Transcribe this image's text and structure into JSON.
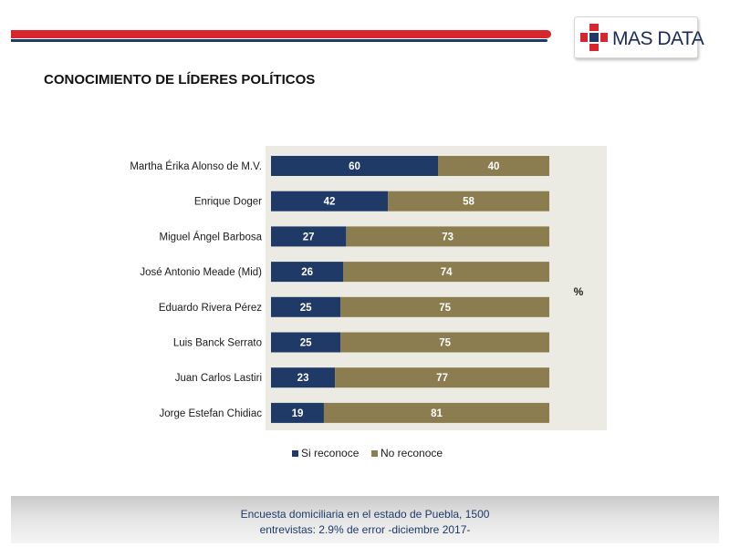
{
  "brand": {
    "logo_text": "MAS DATA",
    "colors": {
      "red": "#d7262e",
      "navy": "#1f3a67"
    }
  },
  "title": "CONOCIMIENTO DE LÍDERES POLÍTICOS",
  "chart_data": {
    "type": "bar",
    "orientation": "horizontal",
    "stacked": true,
    "categories": [
      "Martha Érika Alonso de M.V.",
      "Enrique Doger",
      "Miguel Ángel Barbosa",
      "José Antonio Meade (Mid)",
      "Eduardo Rivera Pérez",
      "Luis Banck Serrato",
      "Juan Carlos Lastiri",
      "Jorge Estefan Chidiac"
    ],
    "series": [
      {
        "name": "Si reconoce",
        "color": "#1f3a67",
        "values": [
          60,
          42,
          27,
          26,
          25,
          25,
          23,
          19
        ]
      },
      {
        "name": "No reconoce",
        "color": "#8b7d4f",
        "values": [
          40,
          58,
          73,
          74,
          75,
          75,
          77,
          81
        ]
      }
    ],
    "unit_label": "%",
    "xlim": [
      0,
      100
    ],
    "legend": "bottom",
    "grid": false,
    "plot_background": "#ecebe3"
  },
  "footer": {
    "line1": "Encuesta domiciliaria en el estado de Puebla, 1500",
    "line2": "entrevistas: 2.9% de error -diciembre 2017-"
  }
}
